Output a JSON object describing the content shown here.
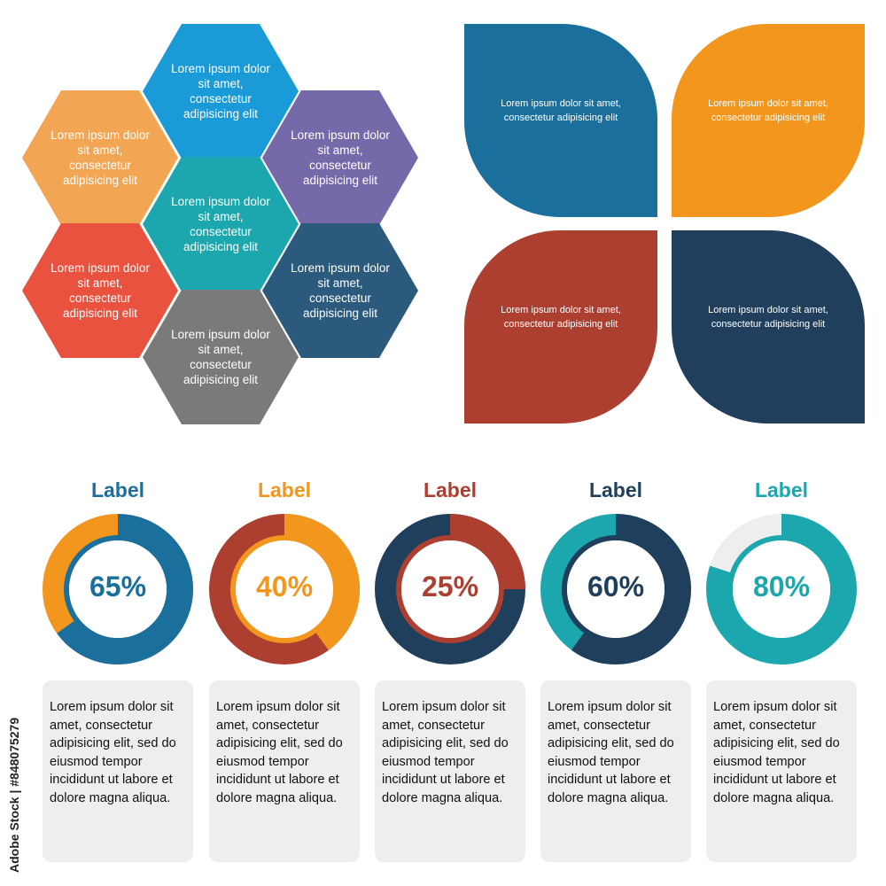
{
  "hexagons": [
    {
      "text": "Lorem ipsum dolor sit amet, consectetur adipisicing elit",
      "color": "#1a9ad6"
    },
    {
      "text": "Lorem ipsum dolor sit amet, consectetur adipisicing elit",
      "color": "#f2a553"
    },
    {
      "text": "Lorem ipsum dolor sit amet, consectetur adipisicing elit",
      "color": "#7669a9"
    },
    {
      "text": "Lorem ipsum dolor sit amet, consectetur adipisicing elit",
      "color": "#1ba7ad"
    },
    {
      "text": "Lorem ipsum dolor sit amet, consectetur adipisicing elit",
      "color": "#e8523f"
    },
    {
      "text": "Lorem ipsum dolor sit amet, consectetur adipisicing elit",
      "color": "#2b5a7c"
    },
    {
      "text": "Lorem ipsum dolor sit amet, consectetur adipisicing elit",
      "color": "#7a7a7a"
    }
  ],
  "petals": [
    {
      "text": "Lorem ipsum dolor sit amet, consectetur adipisicing elit",
      "color": "#1b6f9c"
    },
    {
      "text": "Lorem ipsum dolor sit amet, consectetur adipisicing elit",
      "color": "#f3961e"
    },
    {
      "text": "Lorem ipsum dolor sit amet, consectetur adipisicing elit",
      "color": "#ad3f31"
    },
    {
      "text": "Lorem ipsum dolor sit amet, consectetur adipisicing elit",
      "color": "#1f3f5c"
    }
  ],
  "rings": [
    {
      "label": "Label",
      "percent_text": "65%",
      "percent": 65,
      "accent": "#1b6f9c",
      "rest": "#f3961e"
    },
    {
      "label": "Label",
      "percent_text": "40%",
      "percent": 40,
      "accent": "#f3961e",
      "rest": "#ad3f31"
    },
    {
      "label": "Label",
      "percent_text": "25%",
      "percent": 25,
      "accent": "#ad3f31",
      "rest": "#1f3f5c"
    },
    {
      "label": "Label",
      "percent_text": "60%",
      "percent": 60,
      "accent": "#1f3f5c",
      "rest": "#1ba7ad"
    },
    {
      "label": "Label",
      "percent_text": "80%",
      "percent": 80,
      "accent": "#1ba7ad",
      "rest": "#eeeeee"
    }
  ],
  "cards": [
    {
      "text": "Lorem ipsum dolor sit amet, consectetur adipisicing elit, sed do eiusmod tempor incididunt ut labore et dolore magna aliqua."
    },
    {
      "text": "Lorem ipsum dolor sit amet, consectetur adipisicing elit, sed do eiusmod tempor incididunt ut labore et dolore magna aliqua."
    },
    {
      "text": "Lorem ipsum dolor sit amet, consectetur adipisicing elit, sed do eiusmod tempor incididunt ut labore et dolore magna aliqua."
    },
    {
      "text": "Lorem ipsum dolor sit amet, consectetur adipisicing elit, sed do eiusmod tempor incididunt ut labore et dolore magna aliqua."
    },
    {
      "text": "Lorem ipsum dolor sit amet, consectetur adipisicing elit, sed do eiusmod tempor incididunt ut labore et dolore magna aliqua."
    }
  ],
  "watermark": "Adobe Stock | #848075279"
}
